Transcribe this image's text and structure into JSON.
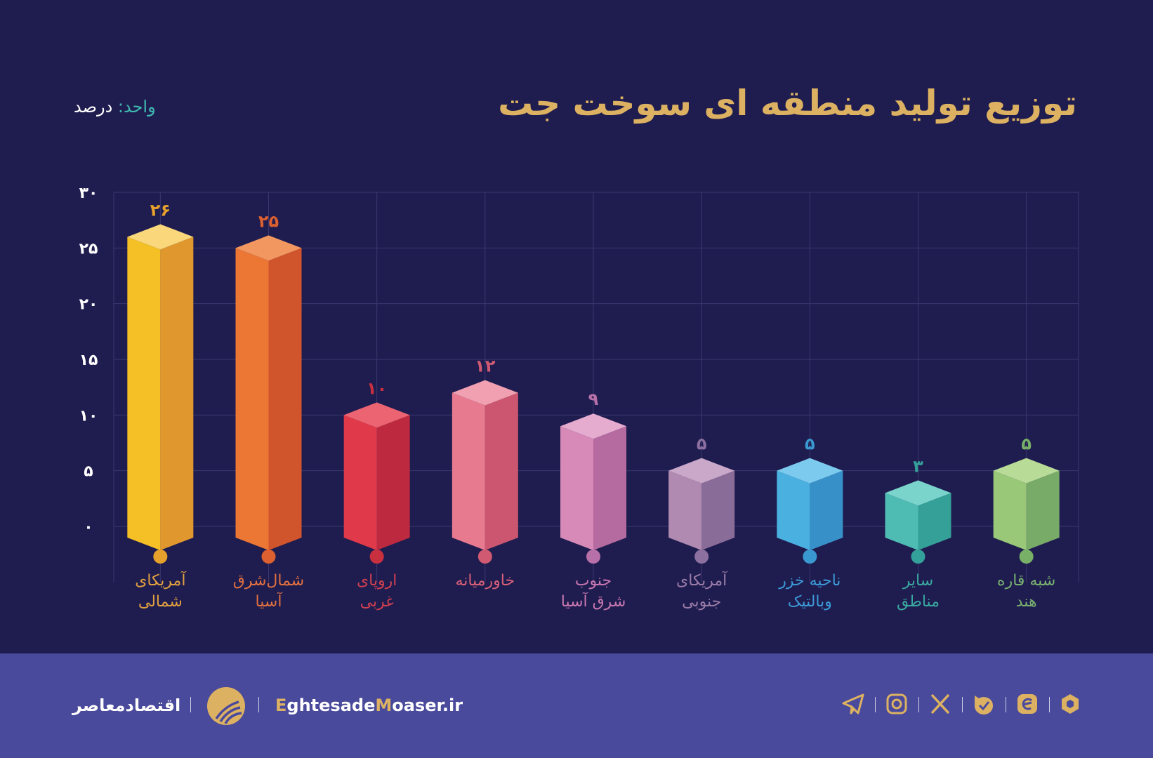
{
  "title": "توزیع تولید منطقه ای سوخت جت",
  "unit": {
    "key": "واحد:",
    "value": "درصد"
  },
  "chart_data": {
    "type": "bar",
    "style": "3d-bars",
    "ylim": [
      0,
      30
    ],
    "yticks": [
      0,
      5,
      10,
      15,
      20,
      25,
      30
    ],
    "ytick_labels": [
      "۰",
      "۵",
      "۱۰",
      "۱۵",
      "۲۰",
      "۲۵",
      "۳۰"
    ],
    "grid": true,
    "categories": [
      [
        "آمریکای",
        "شمالی"
      ],
      [
        "شمال‌شرق",
        "آسیا"
      ],
      [
        "اروپای",
        "غربی"
      ],
      [
        "خاورمیانه"
      ],
      [
        "جنوب",
        "شرق آسیا"
      ],
      [
        "آمریکای",
        "جنوبی"
      ],
      [
        "ناحیه خزر",
        "وبالتیک"
      ],
      [
        "سایر",
        "مناطق"
      ],
      [
        "شبه قاره",
        "هند"
      ]
    ],
    "values": [
      26,
      25,
      10,
      12,
      9,
      5,
      5,
      3,
      5
    ],
    "value_labels": [
      "۲۶",
      "۲۵",
      "۱۰",
      "۱۲",
      "۹",
      "۵",
      "۵",
      "۳",
      "۵"
    ],
    "colors": [
      {
        "front": "#f4c025",
        "side": "#e0982e",
        "top": "#f9d77a",
        "dot": "#e6a02c",
        "label": "#e0a040"
      },
      {
        "front": "#ec7634",
        "side": "#d0552c",
        "top": "#f29760",
        "dot": "#dc6030",
        "label": "#e07040"
      },
      {
        "front": "#e03a4a",
        "side": "#bd2a40",
        "top": "#ec6472",
        "dot": "#c83040",
        "label": "#d04050"
      },
      {
        "front": "#e87a90",
        "side": "#cc5670",
        "top": "#f0a0b0",
        "dot": "#d05a72",
        "label": "#d86078"
      },
      {
        "front": "#d78ab8",
        "side": "#b56aa0",
        "top": "#e6acd0",
        "dot": "#b870a8",
        "label": "#c878b0"
      },
      {
        "front": "#b08ab0",
        "side": "#8a6c98",
        "top": "#c9a8c9",
        "dot": "#8c70a0",
        "label": "#9a7ca8"
      },
      {
        "front": "#4ab0e0",
        "side": "#3890c8",
        "top": "#7ccaee",
        "dot": "#3a98d0",
        "label": "#3c9ad8"
      },
      {
        "front": "#4fbcb4",
        "side": "#34a098",
        "top": "#7ad4cc",
        "dot": "#34a09a",
        "label": "#38a8a0"
      },
      {
        "front": "#98c878",
        "side": "#78aa68",
        "top": "#b8dc98",
        "dot": "#78b068",
        "label": "#78b070"
      }
    ]
  },
  "footer": {
    "brand_fa": "اقتصادمعاصر",
    "site_parts": [
      "E",
      "ghtesade",
      "M",
      "oaser.ir"
    ],
    "accent": "#dcb262",
    "social_icons": [
      "telegram-icon",
      "instagram-icon",
      "x-icon",
      "bale-icon",
      "eitaa-icon",
      "rubika-icon"
    ]
  }
}
